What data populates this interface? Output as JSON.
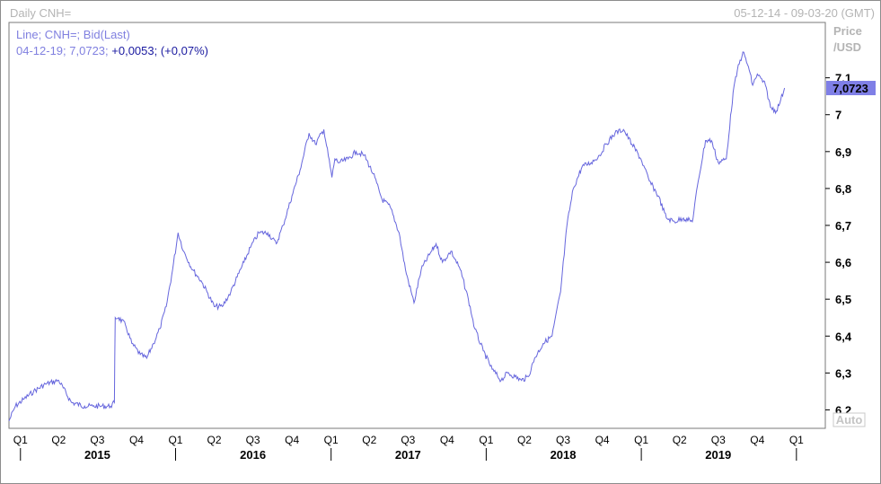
{
  "header": {
    "left": "Daily CNH=",
    "right": "05-12-14 - 09-03-20 (GMT)"
  },
  "colors": {
    "line": "#6666dd",
    "legend_text": "#8080e0",
    "legend_change": "#1a1aa0",
    "last_price_bg": "#7f7fe6",
    "axis_text": "#000000",
    "header_text": "#b4b4b4"
  },
  "legend": {
    "line1": "Line; CNH=; Bid(Last)",
    "line2_date_value": "04-12-19; 7,0723;",
    "line2_change": "+0,0053; (+0,07%)"
  },
  "price_axis": {
    "title_line1": "Price",
    "title_line2": "/USD",
    "ticks": [
      {
        "value": 6.2,
        "label": "6,2"
      },
      {
        "value": 6.3,
        "label": "6,3"
      },
      {
        "value": 6.4,
        "label": "6,4"
      },
      {
        "value": 6.5,
        "label": "6,5"
      },
      {
        "value": 6.6,
        "label": "6,6"
      },
      {
        "value": 6.7,
        "label": "6,7"
      },
      {
        "value": 6.8,
        "label": "6,8"
      },
      {
        "value": 6.9,
        "label": "6,9"
      },
      {
        "value": 7.0,
        "label": "7"
      },
      {
        "value": 7.1,
        "label": "7,1"
      }
    ],
    "last_price": {
      "value": 7.0723,
      "label": "7,0723"
    },
    "auto_label": "Auto"
  },
  "chart_data": {
    "type": "line",
    "series": [
      {
        "x": [
          "2014-12-05",
          "2014-12-20",
          "2015-01-10",
          "2015-02-01",
          "2015-03-01",
          "2015-04-01",
          "2015-05-01",
          "2015-06-01",
          "2015-06-20",
          "2015-07-10",
          "2015-08-01",
          "2015-08-10",
          "2015-08-12",
          "2015-08-20",
          "2015-09-05",
          "2015-09-20",
          "2015-10-10",
          "2015-10-25",
          "2015-11-10",
          "2015-11-25",
          "2015-12-10",
          "2015-12-25",
          "2016-01-07",
          "2016-01-20",
          "2016-02-10",
          "2016-03-01",
          "2016-03-15",
          "2016-04-01",
          "2016-04-20",
          "2016-05-10",
          "2016-05-25",
          "2016-06-10",
          "2016-06-25",
          "2016-07-15",
          "2016-08-05",
          "2016-08-25",
          "2016-09-10",
          "2016-10-01",
          "2016-10-20",
          "2016-11-10",
          "2016-11-25",
          "2016-12-15",
          "2017-01-03",
          "2017-01-10",
          "2017-01-20",
          "2017-02-10",
          "2017-03-01",
          "2017-03-20",
          "2017-04-10",
          "2017-05-01",
          "2017-05-20",
          "2017-06-10",
          "2017-06-25",
          "2017-07-15",
          "2017-08-01",
          "2017-08-20",
          "2017-09-05",
          "2017-09-20",
          "2017-10-10",
          "2017-11-01",
          "2017-11-20",
          "2017-12-05",
          "2017-12-25",
          "2018-01-15",
          "2018-02-05",
          "2018-02-20",
          "2018-03-10",
          "2018-03-25",
          "2018-04-10",
          "2018-04-25",
          "2018-05-15",
          "2018-06-05",
          "2018-06-25",
          "2018-07-10",
          "2018-07-25",
          "2018-08-15",
          "2018-09-05",
          "2018-09-25",
          "2018-10-10",
          "2018-10-31",
          "2018-11-20",
          "2018-12-10",
          "2018-12-31",
          "2019-01-20",
          "2019-02-10",
          "2019-03-01",
          "2019-03-20",
          "2019-04-10",
          "2019-05-01",
          "2019-05-15",
          "2019-06-01",
          "2019-06-15",
          "2019-07-01",
          "2019-07-20",
          "2019-08-05",
          "2019-08-15",
          "2019-08-28",
          "2019-09-10",
          "2019-09-20",
          "2019-10-01",
          "2019-10-20",
          "2019-11-01",
          "2019-11-15",
          "2019-11-25",
          "2019-12-04"
        ],
        "y": [
          6.17,
          6.21,
          6.23,
          6.25,
          6.27,
          6.28,
          6.22,
          6.21,
          6.21,
          6.21,
          6.21,
          6.22,
          6.45,
          6.45,
          6.43,
          6.38,
          6.35,
          6.34,
          6.38,
          6.42,
          6.48,
          6.58,
          6.68,
          6.63,
          6.58,
          6.55,
          6.52,
          6.48,
          6.48,
          6.52,
          6.56,
          6.6,
          6.64,
          6.68,
          6.68,
          6.65,
          6.7,
          6.78,
          6.85,
          6.95,
          6.92,
          6.96,
          6.83,
          6.88,
          6.87,
          6.88,
          6.9,
          6.89,
          6.84,
          6.77,
          6.75,
          6.68,
          6.58,
          6.49,
          6.58,
          6.62,
          6.65,
          6.6,
          6.63,
          6.58,
          6.5,
          6.42,
          6.36,
          6.31,
          6.28,
          6.3,
          6.29,
          6.28,
          6.29,
          6.34,
          6.38,
          6.4,
          6.52,
          6.7,
          6.8,
          6.86,
          6.87,
          6.89,
          6.92,
          6.95,
          6.96,
          6.92,
          6.88,
          6.82,
          6.78,
          6.72,
          6.71,
          6.72,
          6.71,
          6.82,
          6.93,
          6.93,
          6.87,
          6.88,
          7.06,
          7.12,
          7.17,
          7.13,
          7.08,
          7.11,
          7.08,
          7.02,
          7.01,
          7.04,
          7.0723
        ]
      }
    ],
    "x_axis": {
      "quarters": [
        {
          "date": "2015-01-01",
          "label": "Q1"
        },
        {
          "date": "2015-04-01",
          "label": "Q2"
        },
        {
          "date": "2015-07-01",
          "label": "Q3"
        },
        {
          "date": "2015-10-01",
          "label": "Q4"
        },
        {
          "date": "2016-01-01",
          "label": "Q1"
        },
        {
          "date": "2016-04-01",
          "label": "Q2"
        },
        {
          "date": "2016-07-01",
          "label": "Q3"
        },
        {
          "date": "2016-10-01",
          "label": "Q4"
        },
        {
          "date": "2017-01-01",
          "label": "Q1"
        },
        {
          "date": "2017-04-01",
          "label": "Q2"
        },
        {
          "date": "2017-07-01",
          "label": "Q3"
        },
        {
          "date": "2017-10-01",
          "label": "Q4"
        },
        {
          "date": "2018-01-01",
          "label": "Q1"
        },
        {
          "date": "2018-04-01",
          "label": "Q2"
        },
        {
          "date": "2018-07-01",
          "label": "Q3"
        },
        {
          "date": "2018-10-01",
          "label": "Q4"
        },
        {
          "date": "2019-01-01",
          "label": "Q1"
        },
        {
          "date": "2019-04-01",
          "label": "Q2"
        },
        {
          "date": "2019-07-01",
          "label": "Q3"
        },
        {
          "date": "2019-10-01",
          "label": "Q4"
        },
        {
          "date": "2020-01-01",
          "label": "Q1"
        }
      ],
      "years": [
        {
          "date": "2015-07-01",
          "label": "2015"
        },
        {
          "date": "2016-07-01",
          "label": "2016"
        },
        {
          "date": "2017-07-01",
          "label": "2017"
        },
        {
          "date": "2018-07-01",
          "label": "2018"
        },
        {
          "date": "2019-07-01",
          "label": "2019"
        }
      ],
      "year_boundaries": [
        "2015-01-01",
        "2016-01-01",
        "2017-01-01",
        "2018-01-01",
        "2019-01-01",
        "2020-01-01"
      ],
      "range": [
        "2014-12-05",
        "2020-03-09"
      ]
    },
    "y_axis": {
      "range": [
        6.15,
        7.25
      ],
      "side": "right"
    },
    "grid": false
  }
}
